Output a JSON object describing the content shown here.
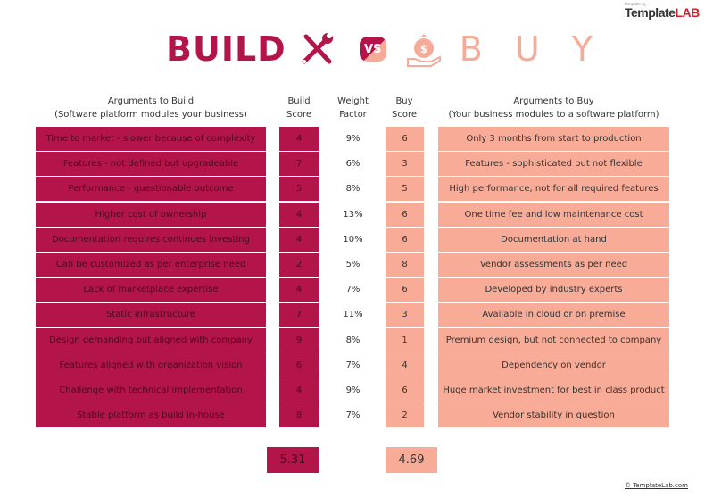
{
  "brand": {
    "logo_part1": "Template",
    "logo_part2": "LAB",
    "small_text": "template by"
  },
  "title": {
    "build": "BUILD",
    "vs": "VS",
    "buy": "B U Y",
    "build_icon": "wrench-screwdriver-icon",
    "buy_icon": "money-bag-hand-icon"
  },
  "colors": {
    "build": "#b3154a",
    "buy": "#f8ac98"
  },
  "headers": {
    "left_line1": "Arguments to Build",
    "left_line2": "(Software platform modules your business)",
    "build_line1": "Build",
    "build_line2": "Score",
    "weight_line1": "Weight",
    "weight_line2": "Factor",
    "buy_line1": "Buy",
    "buy_line2": "Score",
    "right_line1": "Arguments to Buy",
    "right_line2": "(Your business modules to a software platform)"
  },
  "rows": [
    {
      "build_arg": "Time to market - slower because of complexity",
      "build_score": "4",
      "weight": "9%",
      "buy_score": "6",
      "buy_arg": "Only 3 months from start to production"
    },
    {
      "build_arg": "Features - not defined but upgradeable",
      "build_score": "7",
      "weight": "6%",
      "buy_score": "3",
      "buy_arg": "Features - sophisticated but not flexible"
    },
    {
      "build_arg": "Performance - questionable outcome",
      "build_score": "5",
      "weight": "8%",
      "buy_score": "5",
      "buy_arg": "High performance, not for all required features"
    },
    {
      "build_arg": "Higher cost of ownership",
      "build_score": "4",
      "weight": "13%",
      "buy_score": "6",
      "buy_arg": "One time fee and low maintenance cost"
    },
    {
      "build_arg": "Documentation requires continues investing",
      "build_score": "4",
      "weight": "10%",
      "buy_score": "6",
      "buy_arg": "Documentation at hand"
    },
    {
      "build_arg": "Can be customized as per enterprise need",
      "build_score": "2",
      "weight": "5%",
      "buy_score": "8",
      "buy_arg": "Vendor assessments as per need"
    },
    {
      "build_arg": "Lack of marketplace expertise",
      "build_score": "4",
      "weight": "7%",
      "buy_score": "6",
      "buy_arg": "Developed by industry experts"
    },
    {
      "build_arg": "Static infrastructure",
      "build_score": "7",
      "weight": "11%",
      "buy_score": "3",
      "buy_arg": "Available in cloud or on premise"
    },
    {
      "build_arg": "Design demanding but aligned with company",
      "build_score": "9",
      "weight": "8%",
      "buy_score": "1",
      "buy_arg": "Premium design, but not connected to company"
    },
    {
      "build_arg": "Features aligned with organization vision",
      "build_score": "6",
      "weight": "7%",
      "buy_score": "4",
      "buy_arg": "Dependency on vendor"
    },
    {
      "build_arg": "Challenge with technical implementation",
      "build_score": "4",
      "weight": "9%",
      "buy_score": "6",
      "buy_arg": "Huge market investment for best in class product"
    },
    {
      "build_arg": "Stable platform as build in-house",
      "build_score": "8",
      "weight": "7%",
      "buy_score": "2",
      "buy_arg": "Vendor stability in question"
    }
  ],
  "totals": {
    "build": "5.31",
    "buy": "4.69"
  },
  "footer": "© TemplateLab.com"
}
